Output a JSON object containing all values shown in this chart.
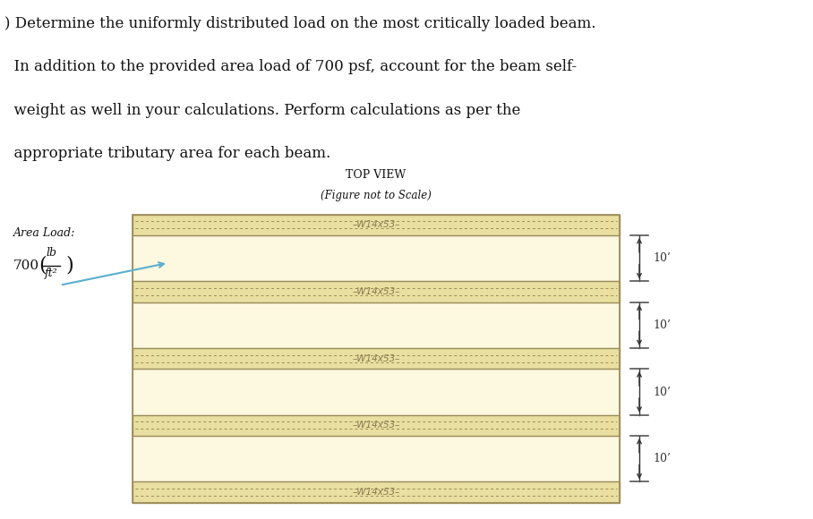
{
  "title_line1": ") Determine the uniformly distributed load on the most critically loaded beam.",
  "title_line2": "  In addition to the provided area load of 700 psf, account for the beam self-",
  "title_line3": "  weight as well in your calculations. Perform calculations as per the",
  "title_line4": "  appropriate tributary area for each beam.",
  "top_view_label": "TOP VIEW",
  "scale_label": "(Figure not to Scale)",
  "area_load_label": "Area Load:",
  "area_load_value": "lb",
  "area_load_denom": "ft²",
  "area_load_number": "700",
  "beam_label": "W14x53",
  "num_beams": 5,
  "fig_width": 9.08,
  "fig_height": 5.8,
  "beam_fill_color": "#e8dfa0",
  "beam_edge_color": "#9a8c5a",
  "panel_fill_color": "#fdf8e0",
  "dim_text": "10’",
  "dim_color": "#333333",
  "beam_label_color": "#8a7a50",
  "arrow_color": "#5aafcc",
  "text_color": "#111111",
  "tick_color": "#555555"
}
